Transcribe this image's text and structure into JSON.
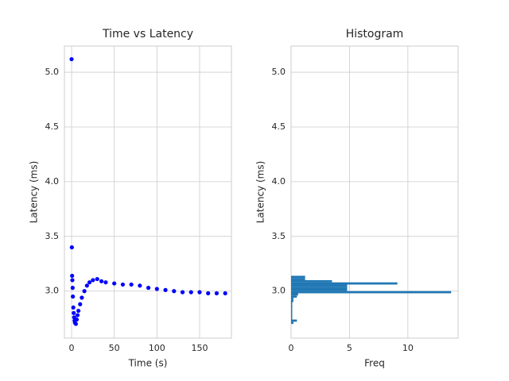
{
  "chart_data": [
    {
      "type": "line",
      "title": "Time vs Latency",
      "xlabel": "Time (s)",
      "ylabel": "Latency (ms)",
      "x": [
        0,
        0.3,
        0.6,
        0.9,
        1.2,
        1.5,
        2,
        2.5,
        3,
        3.5,
        4,
        5,
        6,
        7,
        8,
        10,
        12,
        15,
        18,
        21,
        25,
        30,
        35,
        40,
        50,
        60,
        70,
        80,
        90,
        100,
        110,
        120,
        130,
        140,
        150,
        160,
        170,
        180
      ],
      "values": [
        5.12,
        3.4,
        3.14,
        3.1,
        3.03,
        2.95,
        2.85,
        2.8,
        2.76,
        2.73,
        2.71,
        2.7,
        2.74,
        2.78,
        2.82,
        2.88,
        2.94,
        3.0,
        3.05,
        3.08,
        3.1,
        3.11,
        3.09,
        3.08,
        3.07,
        3.06,
        3.06,
        3.05,
        3.03,
        3.02,
        3.01,
        3.0,
        2.99,
        2.99,
        2.99,
        2.98,
        2.98,
        2.98
      ],
      "color": "#0000ff",
      "linestyle": "dashed",
      "marker": true,
      "xlim": [
        -8.4,
        187.3
      ],
      "xticks": [
        0,
        50,
        100,
        150
      ],
      "ylim": [
        2.57,
        5.24
      ],
      "yticks": [
        {
          "value": 3.0,
          "label": "3.0"
        },
        3.5,
        {
          "value": 4.0,
          "label": "4.0"
        },
        4.5,
        {
          "value": 5.0,
          "label": "5.0"
        }
      ],
      "grid": true
    },
    {
      "type": "histogram",
      "orientation": "horizontal",
      "title": "Histogram",
      "xlabel": "Freq",
      "ylabel": "Latency (ms)",
      "bins": [
        2.7,
        2.72,
        2.74,
        2.76,
        2.78,
        2.8,
        2.82,
        2.84,
        2.86,
        2.88,
        2.9,
        2.92,
        2.94,
        2.96,
        2.98,
        3.0,
        3.02,
        3.04,
        3.06,
        3.08,
        3.1,
        3.12,
        3.14
      ],
      "values": [
        0.2,
        0.5,
        0.1,
        0.1,
        0.1,
        0.1,
        0.1,
        0.1,
        0.1,
        0.1,
        0.2,
        0.2,
        0.5,
        0.6,
        13.7,
        4.8,
        4.8,
        4.8,
        9.1,
        3.5,
        1.2,
        1.2
      ],
      "color": "#1f77b4",
      "xlim": [
        0,
        14.3
      ],
      "xticks": [
        0,
        5,
        10
      ],
      "ylim": [
        2.57,
        5.24
      ],
      "yticks": [
        {
          "value": 3.0,
          "label": "3.0"
        },
        3.5,
        {
          "value": 4.0,
          "label": "4.0"
        },
        4.5,
        {
          "value": 5.0,
          "label": "5.0"
        }
      ],
      "grid": true
    }
  ]
}
